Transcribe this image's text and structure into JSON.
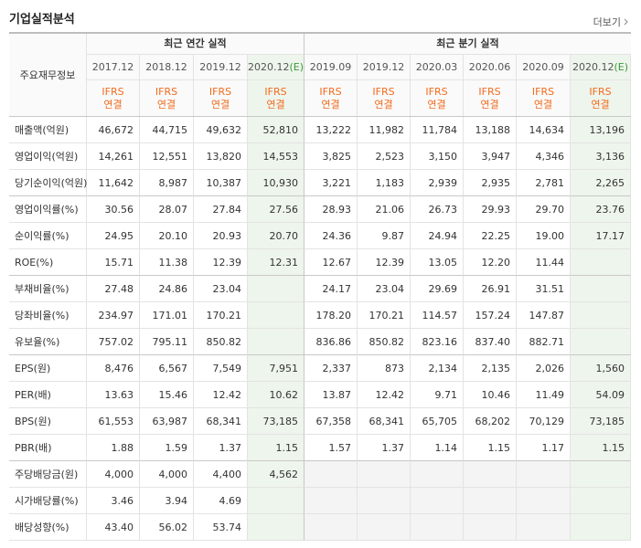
{
  "header": {
    "title": "기업실적분석",
    "more": "더보기"
  },
  "table": {
    "corner": "주요재무정보",
    "groups": [
      "최근 연간 실적",
      "최근 분기 실적"
    ],
    "columns": [
      {
        "label": "2017.12",
        "basis_top": "IFRS",
        "basis_bottom": "연결"
      },
      {
        "label": "2018.12",
        "basis_top": "IFRS",
        "basis_bottom": "연결"
      },
      {
        "label": "2019.12",
        "basis_top": "IFRS",
        "basis_bottom": "연결"
      },
      {
        "label": "2020.12",
        "mark": "(E)",
        "basis_top": "IFRS",
        "basis_bottom": "연결"
      },
      {
        "label": "2019.09",
        "basis_top": "IFRS",
        "basis_bottom": "연결"
      },
      {
        "label": "2019.12",
        "basis_top": "IFRS",
        "basis_bottom": "연결"
      },
      {
        "label": "2020.03",
        "basis_top": "IFRS",
        "basis_bottom": "연결"
      },
      {
        "label": "2020.06",
        "basis_top": "IFRS",
        "basis_bottom": "연결"
      },
      {
        "label": "2020.09",
        "basis_top": "IFRS",
        "basis_bottom": "연결"
      },
      {
        "label": "2020.12",
        "mark": "(E)",
        "basis_top": "IFRS",
        "basis_bottom": "연결"
      }
    ],
    "rows": [
      {
        "label": "매출액(억원)",
        "values": [
          "46,672",
          "44,715",
          "49,632",
          "52,810",
          "13,222",
          "11,982",
          "11,784",
          "13,188",
          "14,634",
          "13,196"
        ]
      },
      {
        "label": "영업이익(억원)",
        "values": [
          "14,261",
          "12,551",
          "13,820",
          "14,553",
          "3,825",
          "2,523",
          "3,150",
          "3,947",
          "4,346",
          "3,136"
        ]
      },
      {
        "label": "당기순이익(억원)",
        "values": [
          "11,642",
          "8,987",
          "10,387",
          "10,930",
          "3,221",
          "1,183",
          "2,939",
          "2,935",
          "2,781",
          "2,265"
        ]
      },
      {
        "label": "영업이익률(%)",
        "values": [
          "30.56",
          "28.07",
          "27.84",
          "27.56",
          "28.93",
          "21.06",
          "26.73",
          "29.93",
          "29.70",
          "23.76"
        ]
      },
      {
        "label": "순이익률(%)",
        "values": [
          "24.95",
          "20.10",
          "20.93",
          "20.70",
          "24.36",
          "9.87",
          "24.94",
          "22.25",
          "19.00",
          "17.17"
        ]
      },
      {
        "label": "ROE(%)",
        "values": [
          "15.71",
          "11.38",
          "12.39",
          "12.31",
          "12.67",
          "12.39",
          "13.05",
          "12.20",
          "11.44",
          null
        ]
      },
      {
        "label": "부채비율(%)",
        "values": [
          "27.48",
          "24.86",
          "23.04",
          null,
          "24.17",
          "23.04",
          "29.69",
          "26.91",
          "31.51",
          null
        ]
      },
      {
        "label": "당좌비율(%)",
        "values": [
          "234.97",
          "171.01",
          "170.21",
          null,
          "178.20",
          "170.21",
          "114.57",
          "157.24",
          "147.87",
          null
        ]
      },
      {
        "label": "유보율(%)",
        "values": [
          "757.02",
          "795.11",
          "850.82",
          null,
          "836.86",
          "850.82",
          "823.16",
          "837.40",
          "882.71",
          null
        ]
      },
      {
        "label": "EPS(원)",
        "values": [
          "8,476",
          "6,567",
          "7,549",
          "7,951",
          "2,337",
          "873",
          "2,134",
          "2,135",
          "2,026",
          "1,560"
        ]
      },
      {
        "label": "PER(배)",
        "values": [
          "13.63",
          "15.46",
          "12.42",
          "10.62",
          "13.87",
          "12.42",
          "9.71",
          "10.46",
          "11.49",
          "54.09"
        ]
      },
      {
        "label": "BPS(원)",
        "values": [
          "61,553",
          "63,987",
          "68,341",
          "73,185",
          "67,358",
          "68,341",
          "65,705",
          "68,202",
          "70,129",
          "73,185"
        ]
      },
      {
        "label": "PBR(배)",
        "values": [
          "1.88",
          "1.59",
          "1.37",
          "1.15",
          "1.57",
          "1.37",
          "1.14",
          "1.15",
          "1.17",
          "1.15"
        ]
      },
      {
        "label": "주당배당금(원)",
        "values": [
          "4,000",
          "4,000",
          "4,400",
          "4,562",
          null,
          null,
          null,
          null,
          null,
          null
        ]
      },
      {
        "label": "시가배당률(%)",
        "values": [
          "3.46",
          "3.94",
          "4.69",
          null,
          null,
          null,
          null,
          null,
          null,
          null
        ]
      },
      {
        "label": "배당성향(%)",
        "values": [
          "43.40",
          "56.02",
          "53.74",
          null,
          null,
          null,
          null,
          null,
          null,
          null
        ]
      }
    ]
  }
}
